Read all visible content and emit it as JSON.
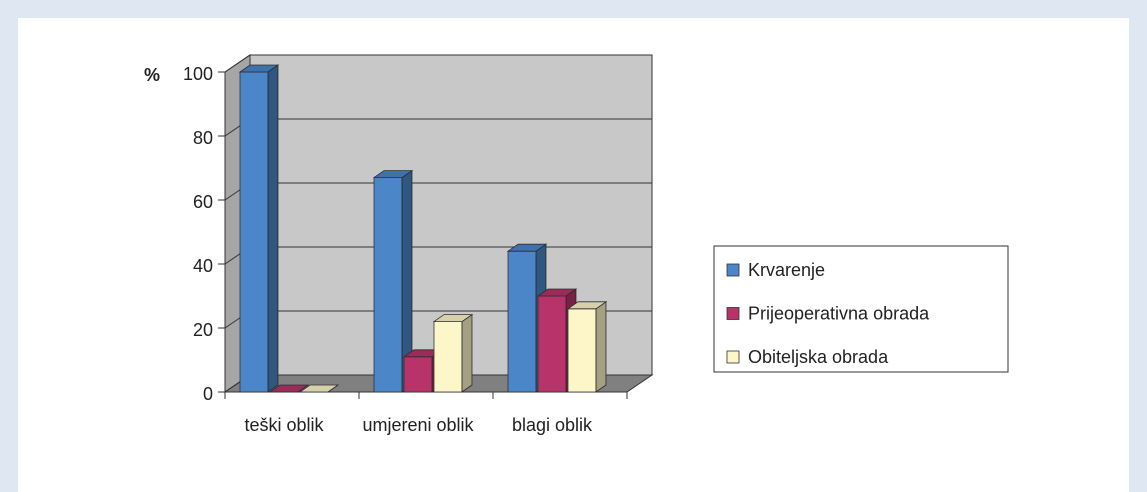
{
  "chart_data": {
    "type": "bar3d",
    "ylabel": "%",
    "categories": [
      "teški oblik",
      "umjereni oblik",
      "blagi oblik"
    ],
    "series": [
      {
        "name": "Krvarenje",
        "color": "#4a86c8",
        "values": [
          100,
          67,
          44
        ]
      },
      {
        "name": "Prijeoperativna obrada",
        "color": "#b8336a",
        "values": [
          0,
          11,
          30
        ]
      },
      {
        "name": "Obiteljska obrada",
        "color": "#fdf6c9",
        "values": [
          0,
          22,
          26
        ]
      }
    ],
    "ylim": [
      0,
      100
    ],
    "yticks": [
      0,
      20,
      40,
      60,
      80,
      100
    ],
    "grid": true,
    "legend": "right"
  }
}
